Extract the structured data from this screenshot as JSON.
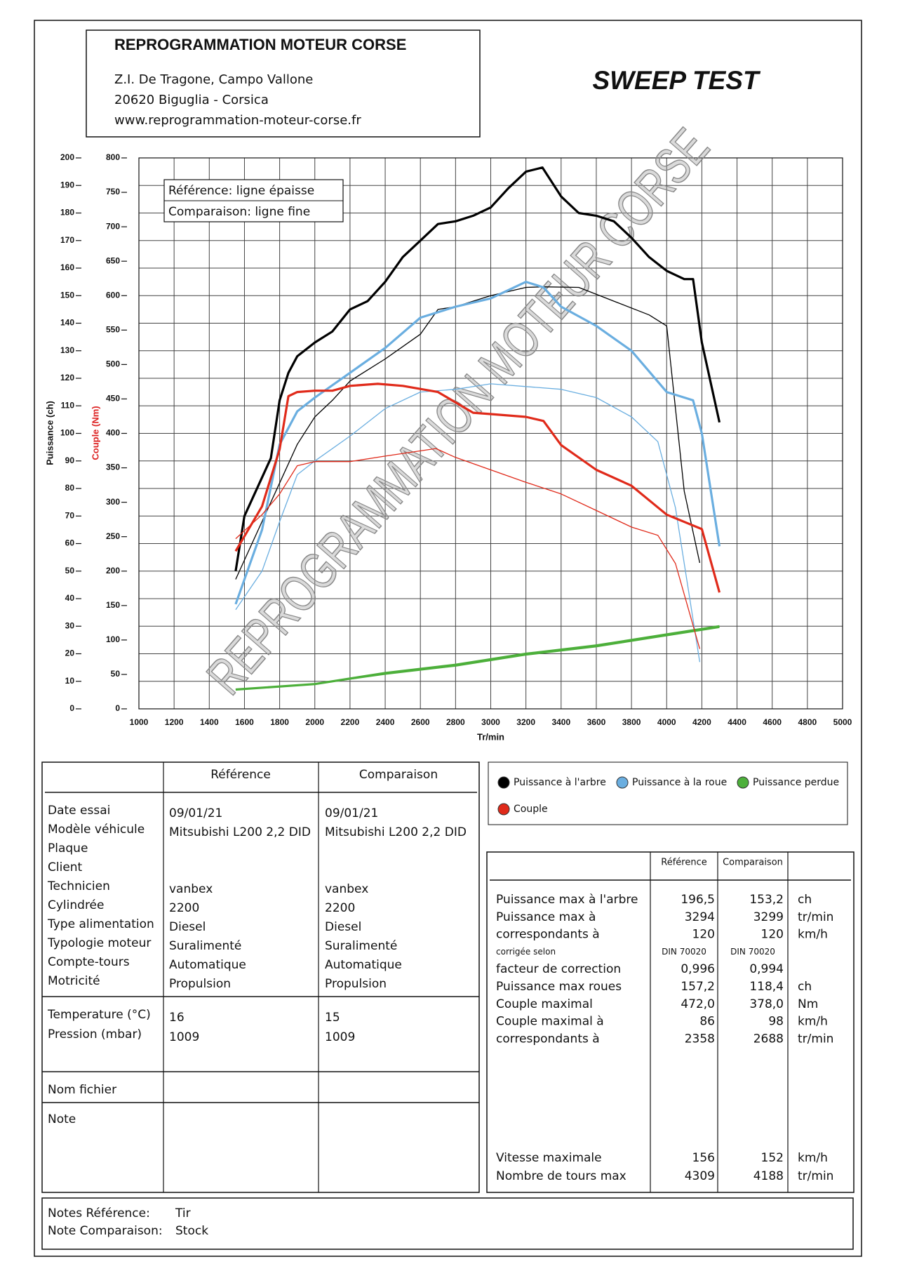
{
  "header": {
    "company": "REPROGRAMMATION MOTEUR CORSE",
    "address": [
      "Z.I. De Tragone, Campo Vallone",
      "20620 Biguglia - Corsica",
      "www.reprogrammation-moteur-corse.fr"
    ],
    "test": "SWEEP TEST"
  },
  "chart_data": {
    "type": "line",
    "watermark": "REPROGRAMMATION MOTEUR CORSE",
    "x_label": "Tr/min",
    "y_label": "Puissance (ch)",
    "y2_label": "Couple (Nm)",
    "line_key": [
      "Référence: ligne épaisse",
      "Comparaison: ligne fine"
    ],
    "xlim": [
      1000,
      5000
    ],
    "xticks": [
      1000,
      1200,
      1400,
      1600,
      1800,
      2000,
      2200,
      2400,
      2600,
      2800,
      3000,
      3200,
      3400,
      3600,
      3800,
      4000,
      4200,
      4400,
      4600,
      4800,
      5000
    ],
    "ylim": [
      0,
      200
    ],
    "yticks": [
      0,
      10,
      20,
      30,
      40,
      50,
      60,
      70,
      80,
      90,
      100,
      110,
      120,
      130,
      140,
      150,
      160,
      170,
      180,
      190,
      200
    ],
    "y2lim": [
      0,
      800
    ],
    "y2ticks": [
      0,
      50,
      100,
      150,
      200,
      250,
      300,
      350,
      400,
      450,
      500,
      550,
      600,
      650,
      700,
      750,
      800
    ],
    "grid": true,
    "series": [
      {
        "name": "Puissance à l'arbre",
        "color": "#000000",
        "reference": {
          "x": [
            1550,
            1600,
            1750,
            1800,
            1850,
            1900,
            2000,
            2100,
            2200,
            2300,
            2400,
            2500,
            2600,
            2700,
            2800,
            2900,
            3000,
            3100,
            3200,
            3294,
            3400,
            3500,
            3600,
            3700,
            3800,
            3900,
            4000,
            4100,
            4150,
            4200,
            4300
          ],
          "values": [
            50,
            70,
            91,
            112,
            122,
            128,
            133,
            137,
            145,
            148,
            155,
            164,
            170,
            176,
            177,
            179,
            182,
            189,
            195,
            196.5,
            186,
            180,
            179,
            177,
            171,
            164,
            159,
            156,
            156,
            133,
            104
          ]
        },
        "comparison": {
          "x": [
            1550,
            1700,
            1800,
            1900,
            2000,
            2100,
            2200,
            2400,
            2600,
            2700,
            2800,
            3000,
            3200,
            3299,
            3500,
            3700,
            3900,
            4000,
            4100,
            4188
          ],
          "values": [
            47,
            68,
            82,
            96,
            106,
            112,
            119,
            127,
            136,
            145,
            146,
            150,
            153,
            153.2,
            153,
            148,
            143,
            139,
            79,
            53
          ]
        }
      },
      {
        "name": "Puissance à la roue",
        "color": "#6aaee0",
        "reference": {
          "x": [
            1550,
            1700,
            1800,
            1900,
            2000,
            2200,
            2400,
            2600,
            2800,
            3000,
            3200,
            3300,
            3400,
            3600,
            3800,
            4000,
            4150,
            4200,
            4300
          ],
          "values": [
            38,
            65,
            96,
            108,
            113,
            122,
            131,
            142,
            146,
            149,
            155,
            153,
            146,
            139,
            130,
            115,
            112,
            100,
            59
          ]
        },
        "comparison": {
          "x": [
            1550,
            1700,
            1800,
            1900,
            2000,
            2200,
            2400,
            2600,
            2800,
            3000,
            3200,
            3400,
            3600,
            3800,
            3950,
            4050,
            4188
          ],
          "values": [
            36,
            50,
            68,
            85,
            90,
            99,
            109,
            115,
            116,
            118,
            117,
            116,
            113,
            106,
            97,
            73,
            17
          ]
        }
      },
      {
        "name": "Puissance perdue",
        "color": "#4caf3a",
        "reference": {
          "x": [
            1550,
            2000,
            2400,
            2800,
            3200,
            3600,
            4000,
            4300
          ],
          "values": [
            7,
            9,
            13,
            16,
            20,
            23,
            27,
            30
          ]
        },
        "comparison": {
          "x": [
            1550,
            2000,
            2400,
            2800,
            3200,
            3600,
            4000,
            4300
          ],
          "values": [
            7,
            9,
            12.5,
            15.5,
            19.5,
            22.5,
            26.5,
            29.5
          ]
        }
      },
      {
        "name": "Couple",
        "color": "#e02a1a",
        "axis": "y2",
        "reference": {
          "x": [
            1550,
            1700,
            1800,
            1850,
            1900,
            2000,
            2100,
            2200,
            2358,
            2500,
            2700,
            2900,
            3000,
            3200,
            3300,
            3400,
            3600,
            3800,
            4000,
            4200,
            4300
          ],
          "values": [
            229,
            294,
            377,
            454,
            460,
            462,
            462,
            469,
            472,
            469,
            460,
            430,
            428,
            424,
            418,
            383,
            347,
            324,
            282,
            261,
            169
          ]
        },
        "comparison": {
          "x": [
            1550,
            1700,
            1800,
            1900,
            2000,
            2200,
            2400,
            2688,
            2800,
            3000,
            3200,
            3400,
            3600,
            3800,
            3950,
            4050,
            4188
          ],
          "values": [
            247,
            282,
            312,
            353,
            359,
            359,
            367,
            378,
            365,
            347,
            329,
            312,
            288,
            264,
            252,
            211,
            87
          ]
        }
      }
    ]
  },
  "info_table": {
    "headers": [
      "Référence",
      "Comparaison"
    ],
    "sections": [
      [
        [
          "Date essai",
          "09/01/21",
          "09/01/21"
        ],
        [
          "Modèle véhicule",
          "Mitsubishi L200 2,2 DID",
          "Mitsubishi L200 2,2 DID"
        ],
        [
          "Plaque",
          null,
          null
        ],
        [
          "Client",
          null,
          null
        ],
        [
          "Technicien",
          "vanbex",
          "vanbex"
        ],
        [
          "Cylindrée",
          "2200",
          "2200"
        ],
        [
          "Type alimentation",
          "Diesel",
          "Diesel"
        ],
        [
          "Typologie moteur",
          "Suralimenté",
          "Suralimenté"
        ],
        [
          "Compte-tours",
          "Automatique",
          "Automatique"
        ],
        [
          "Motricité",
          "Propulsion",
          "Propulsion"
        ]
      ],
      [
        [
          "Temperature (°C)",
          "16",
          "15"
        ],
        [
          "Pression (mbar)",
          "1009",
          "1009"
        ]
      ],
      [
        [
          "Nom fichier",
          null,
          null
        ]
      ],
      [
        [
          "Note",
          null,
          null
        ]
      ]
    ]
  },
  "results_table": {
    "headers": [
      "Référence",
      "Comparaison"
    ],
    "groups": [
      [
        [
          "Puissance max à l'arbre",
          "196,5",
          "153,2",
          "ch"
        ],
        [
          "Puissance max à",
          "3294",
          "3299",
          "tr/min"
        ],
        [
          "correspondants à",
          "120",
          "120",
          "km/h"
        ],
        [
          "corrigée selon",
          "DIN 70020",
          "DIN 70020",
          null
        ],
        [
          "facteur de correction",
          "0,996",
          "0,994",
          null
        ],
        [
          "Puissance max roues",
          "157,2",
          "118,4",
          "ch"
        ],
        [
          "Couple maximal",
          "472,0",
          "378,0",
          "Nm"
        ],
        [
          "Couple maximal à",
          "86",
          "98",
          "km/h"
        ],
        [
          "correspondants à",
          "2358",
          "2688",
          "tr/min"
        ]
      ],
      [
        [
          "Vitesse maximale",
          "156",
          "152",
          "km/h"
        ],
        [
          "Nombre de tours max",
          "4309",
          "4188",
          "tr/min"
        ]
      ]
    ]
  },
  "notes": [
    [
      "Notes Référence:",
      "Tir"
    ],
    [
      "Note Comparaison:",
      "Stock"
    ]
  ]
}
